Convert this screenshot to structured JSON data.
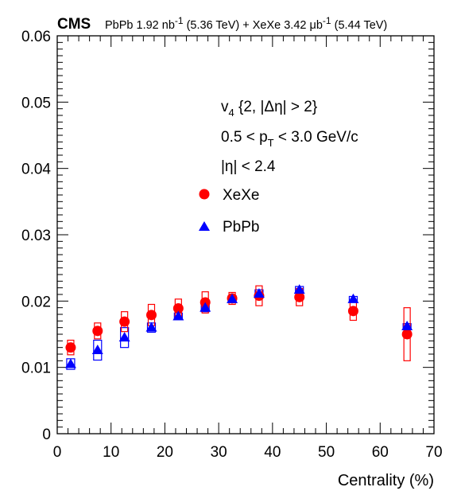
{
  "chart_data": {
    "type": "scatter",
    "experiment": "CMS",
    "header": {
      "pb_label": "PbPb 1.92 nb",
      "pb_exp": "-1",
      "pb_energy": " (5.36 TeV) + XeXe 3.42 μb",
      "xe_exp": "-1",
      "xe_energy": " (5.44 TeV)"
    },
    "annotations": {
      "observable_v": "v",
      "observable_sub": "4",
      "observable_rest": " {2, |Δη| > 2}",
      "pt_left": "0.5 < p",
      "pt_sub": "T",
      "pt_right": " < 3.0 GeV/c",
      "eta": "|η| < 2.4"
    },
    "xlabel": "Centrality (%)",
    "ylabel": "",
    "xlim": [
      0,
      70
    ],
    "ylim": [
      0,
      0.06
    ],
    "x_ticks": [
      0,
      10,
      20,
      30,
      40,
      50,
      60,
      70
    ],
    "x_tick_labels": [
      "0",
      "10",
      "20",
      "30",
      "40",
      "50",
      "60",
      "70"
    ],
    "y_ticks": [
      0,
      0.01,
      0.02,
      0.03,
      0.04,
      0.05,
      0.06
    ],
    "y_tick_labels": [
      "0",
      "0.01",
      "0.02",
      "0.03",
      "0.04",
      "0.05",
      "0.06"
    ],
    "legend_position": "center",
    "series": [
      {
        "name": "XeXe",
        "color": "#ff0000",
        "marker": "circle",
        "x": [
          2.5,
          7.5,
          12.5,
          17.5,
          22.5,
          27.5,
          32.5,
          37.5,
          45,
          55,
          65
        ],
        "y": [
          0.013,
          0.0155,
          0.0169,
          0.0179,
          0.0189,
          0.0198,
          0.0204,
          0.0208,
          0.0206,
          0.0185,
          0.015
        ],
        "sys_err": [
          0.0011,
          0.0012,
          0.0015,
          0.0016,
          0.0014,
          0.0016,
          0.0009,
          0.0015,
          0.0013,
          0.0014,
          0.004
        ]
      },
      {
        "name": "PbPb",
        "color": "#0000ff",
        "marker": "triangle",
        "x": [
          2.5,
          7.5,
          12.5,
          17.5,
          22.5,
          27.5,
          32.5,
          37.5,
          45,
          55,
          65
        ],
        "y": [
          0.0105,
          0.0126,
          0.0145,
          0.016,
          0.0177,
          0.019,
          0.0203,
          0.0211,
          0.0217,
          0.0203,
          0.0162
        ],
        "sys_err": [
          0.0008,
          0.0015,
          0.0015,
          0.0007,
          0.0005,
          0.0006,
          0.0005,
          0.0006,
          0.0005,
          0.0004,
          0.0004
        ]
      }
    ]
  }
}
